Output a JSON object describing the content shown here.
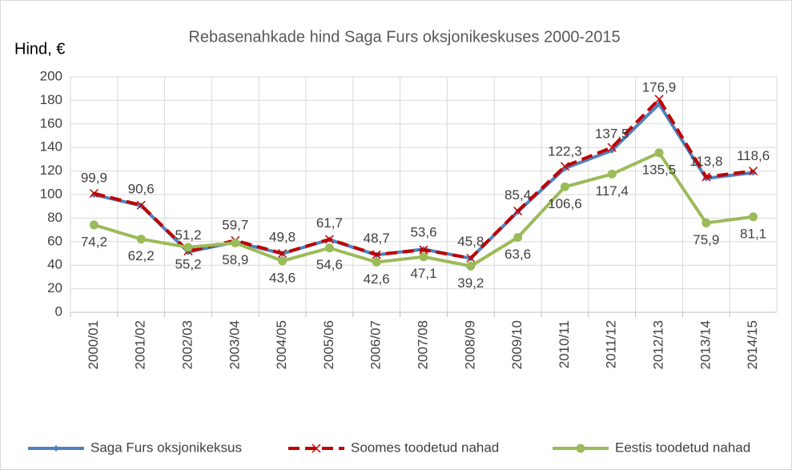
{
  "chart_data": {
    "type": "line",
    "title": "Rebasenahkade  hind Saga Furs oksjonikeskuses 2000-2015",
    "y_label": "Hind, €",
    "categories": [
      "2000/01",
      "2001/02",
      "2002/03",
      "2003/04",
      "2004/05",
      "2005/06",
      "2006/07",
      "2007/08",
      "2008/09",
      "2009/10",
      "2010/11",
      "2011/12",
      "2012/13",
      "2013/14",
      "2014/15"
    ],
    "series": [
      {
        "name": "Saga Furs oksjonikeksus",
        "color": "#4f81bd",
        "values": [
          99.9,
          90.6,
          51.2,
          59.7,
          49.8,
          61.7,
          48.7,
          53.6,
          45.8,
          85.4,
          122.3,
          137.5,
          176.9,
          113.8,
          118.6
        ],
        "value_labels": [
          "99,9",
          "90,6",
          "51,2",
          "59,7",
          "49,8",
          "61,7",
          "48,7",
          "53,6",
          "45,8",
          "85,4",
          "122,3",
          "137,5",
          "176,9",
          "113,8",
          "118,6"
        ]
      },
      {
        "name": "Soomes toodetud nahad",
        "color": "#c00000",
        "values": [
          101,
          91,
          52,
          61,
          50,
          62,
          49,
          53,
          46,
          86,
          124,
          140,
          181,
          115,
          120
        ]
      },
      {
        "name": "Eestis toodetud nahad",
        "color": "#9bbb59",
        "values": [
          74.2,
          62.2,
          55.2,
          58.9,
          43.6,
          54.6,
          42.6,
          47.1,
          39.2,
          63.6,
          106.6,
          117.4,
          135.5,
          75.9,
          81.1
        ],
        "value_labels": [
          "74,2",
          "62,2",
          "55,2",
          "58,9",
          "43,6",
          "54,6",
          "42,6",
          "47,1",
          "39,2",
          "63,6",
          "106,6",
          "117,4",
          "135,5",
          "75,9",
          "81,1"
        ]
      }
    ],
    "ylim": [
      0,
      200
    ],
    "yticks": [
      0,
      20,
      40,
      60,
      80,
      100,
      120,
      140,
      160,
      180,
      200
    ],
    "grid": true
  }
}
